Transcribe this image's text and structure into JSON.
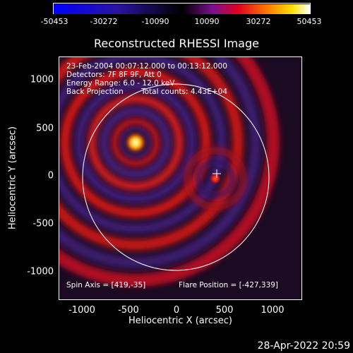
{
  "colorbar": {
    "tick_labels": [
      "-50453",
      "-30272",
      "-10090",
      "10090",
      "30272",
      "50453"
    ]
  },
  "title": "Reconstructed RHESSI Image",
  "info": {
    "line1": "23-Feb-2004 00:07:12.000 to 00:13:12.000",
    "line2": "Detectors: 7F 8F 9F, Att 0",
    "line3": "Energy Range: 6.0 - 12.0 keV",
    "line4a": "Back Projection",
    "line4b": "Total counts: 4.43E+04"
  },
  "footer": {
    "spin_axis": "Spin Axis = [419,-35]",
    "flare_position": "Flare Position = [-427,339]"
  },
  "axes": {
    "xlabel": "Heliocentric X (arcsec)",
    "ylabel": "Heliocentric Y (arcsec)",
    "xticks": [
      "-1000",
      "-500",
      "0",
      "500",
      "1000"
    ],
    "yticks": [
      "1000",
      "500",
      "0",
      "-500",
      "-1000"
    ],
    "xlim": [
      -1260,
      1300
    ],
    "ylim": [
      -1290,
      1250
    ]
  },
  "image": {
    "flare_center": [
      -427,
      339
    ],
    "secondary_source": [
      409,
      -21
    ],
    "solar_limb_radius": 975,
    "colors": {
      "low": "#0000ff",
      "mid": "#000000",
      "high": "#ffffff",
      "accent": "#ff2a00"
    }
  },
  "datestamp": "28-Apr-2022 20:59"
}
